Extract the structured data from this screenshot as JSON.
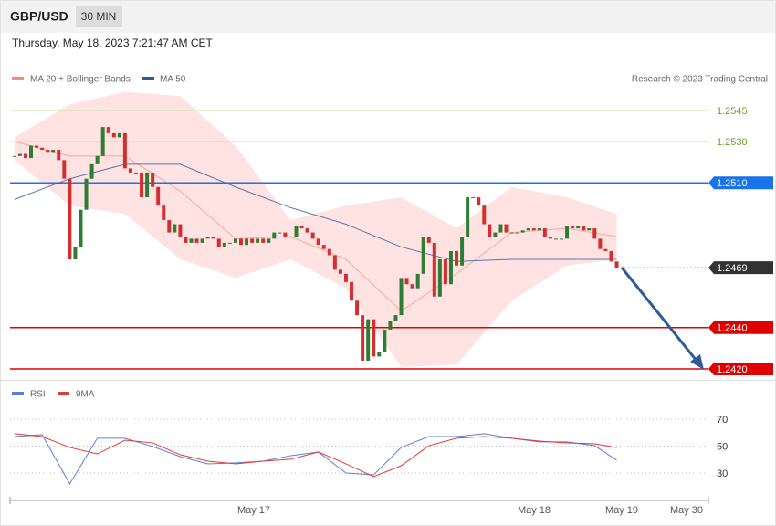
{
  "header": {
    "symbol": "GBP/USD",
    "timeframe": "30 MIN",
    "timestamp": "Thursday, May 18, 2023 7:21:47 AM CET",
    "credit": "Research © 2023 Trading Central"
  },
  "chart_data": [
    {
      "type": "candlestick",
      "up_color": "#2e7d32",
      "down_color": "#d32f2f",
      "close": [
        1.2523,
        1.2524,
        1.2522,
        1.2528,
        1.2527,
        1.2526,
        1.2525,
        1.2526,
        1.2521,
        1.2512,
        1.2473,
        1.2479,
        1.2497,
        1.2512,
        1.2519,
        1.2523,
        1.2537,
        1.2534,
        1.2532,
        1.2534,
        1.2517,
        1.2515,
        1.2515,
        1.2503,
        1.2515,
        1.2508,
        1.2499,
        1.2492,
        1.2486,
        1.249,
        1.2484,
        1.2481,
        1.2483,
        1.2481,
        1.2483,
        1.2484,
        1.2483,
        1.2479,
        1.2481,
        1.2481,
        1.2483,
        1.248,
        1.2483,
        1.2481,
        1.2483,
        1.2481,
        1.2483,
        1.2486,
        1.2486,
        1.2484,
        1.2484,
        1.2489,
        1.2488,
        1.2486,
        1.2483,
        1.248,
        1.2478,
        1.2475,
        1.2468,
        1.2466,
        1.2462,
        1.2453,
        1.2446,
        1.2424,
        1.2444,
        1.2426,
        1.2428,
        1.2439,
        1.2443,
        1.2446,
        1.2464,
        1.2461,
        1.2459,
        1.2466,
        1.2484,
        1.2481,
        1.2455,
        1.2473,
        1.2461,
        1.2477,
        1.247,
        1.2484,
        1.2503,
        1.2503,
        1.2499,
        1.249,
        1.2484,
        1.2486,
        1.249,
        1.2486,
        1.2486,
        1.2486,
        1.2487,
        1.2488,
        1.2487,
        1.2488,
        1.2484,
        1.2483,
        1.2483,
        1.2483,
        1.2489,
        1.2488,
        1.2489,
        1.2487,
        1.2488,
        1.2483,
        1.2478,
        1.2477,
        1.2472,
        1.2469
      ],
      "bands": {
        "name": "MA 20 + Bollinger Bands",
        "color": "#f28b82",
        "fill": "#ffe3e3",
        "x": [
          0,
          10,
          20,
          30,
          40,
          50,
          60,
          70,
          80,
          90,
          100,
          109
        ],
        "upper": [
          1.2532,
          1.2548,
          1.2554,
          1.2552,
          1.2528,
          1.2492,
          1.2499,
          1.2503,
          1.2488,
          1.2508,
          1.2503,
          1.2495
        ],
        "middle": [
          1.253,
          1.2523,
          1.2523,
          1.2506,
          1.2483,
          1.2484,
          1.2473,
          1.2448,
          1.2466,
          1.2486,
          1.2488,
          1.2484
        ],
        "lower": [
          1.2521,
          1.2499,
          1.2495,
          1.2473,
          1.2464,
          1.2473,
          1.2459,
          1.2421,
          1.2422,
          1.2453,
          1.247,
          1.2473
        ]
      },
      "series": [
        {
          "name": "MA 50",
          "color": "#2f5c99",
          "x": [
            0,
            10,
            20,
            30,
            40,
            50,
            60,
            70,
            80,
            90,
            100,
            109
          ],
          "values": [
            1.2502,
            1.2512,
            1.2519,
            1.2519,
            1.2508,
            1.2498,
            1.249,
            1.2479,
            1.2472,
            1.2473,
            1.2473,
            1.2473
          ]
        }
      ],
      "xlim": [
        -0.8,
        125.6
      ],
      "ylim": [
        1.2417,
        1.2556
      ],
      "yticks": [
        1.2545,
        {
          "value": 1.253,
          "label": "1.2530"
        },
        {
          "value": 1.251,
          "label": "1.2510"
        },
        1.2469,
        {
          "value": 1.244,
          "label": "1.2440"
        },
        {
          "value": 1.242,
          "label": "1.2420"
        }
      ],
      "ytick_colors": [
        "#6aa12c",
        "#6aa12c",
        "#1a73e8",
        "#333333",
        "#e00000",
        "#e00000"
      ],
      "ytick_boxed": [
        false,
        false,
        true,
        true,
        true,
        true
      ]
    },
    {
      "type": "line",
      "x": [
        0,
        5,
        10,
        15,
        20,
        25,
        30,
        35,
        40,
        45,
        50,
        55,
        60,
        65,
        70,
        75,
        80,
        85,
        90,
        95,
        100,
        105,
        109
      ],
      "series": [
        {
          "name": "RSI",
          "color": "#5b7fd6",
          "values": [
            57.1,
            58.5,
            21.9,
            55.8,
            55.8,
            49.7,
            42.2,
            36.8,
            37.5,
            38.8,
            42.9,
            45.6,
            30,
            28.6,
            49,
            57.1,
            57.1,
            59.2,
            55.8,
            53.1,
            53.1,
            50.3,
            39.5
          ]
        },
        {
          "name": "9MA",
          "color": "#e53935",
          "values": [
            59.2,
            57.1,
            49,
            44.2,
            54.4,
            52.4,
            43.6,
            38.8,
            36.8,
            38.8,
            40.2,
            45.6,
            36.8,
            27.3,
            35.4,
            50.3,
            55.8,
            57.1,
            55.8,
            53.7,
            52.4,
            51.7,
            49
          ]
        }
      ],
      "xlim": [
        -0.8,
        125.6
      ],
      "ylim": [
        12,
        80
      ],
      "yticks": [
        70,
        50,
        30
      ],
      "xtick_labels": [
        "May 17",
        "May 18",
        "May 19",
        "May 30"
      ]
    }
  ]
}
